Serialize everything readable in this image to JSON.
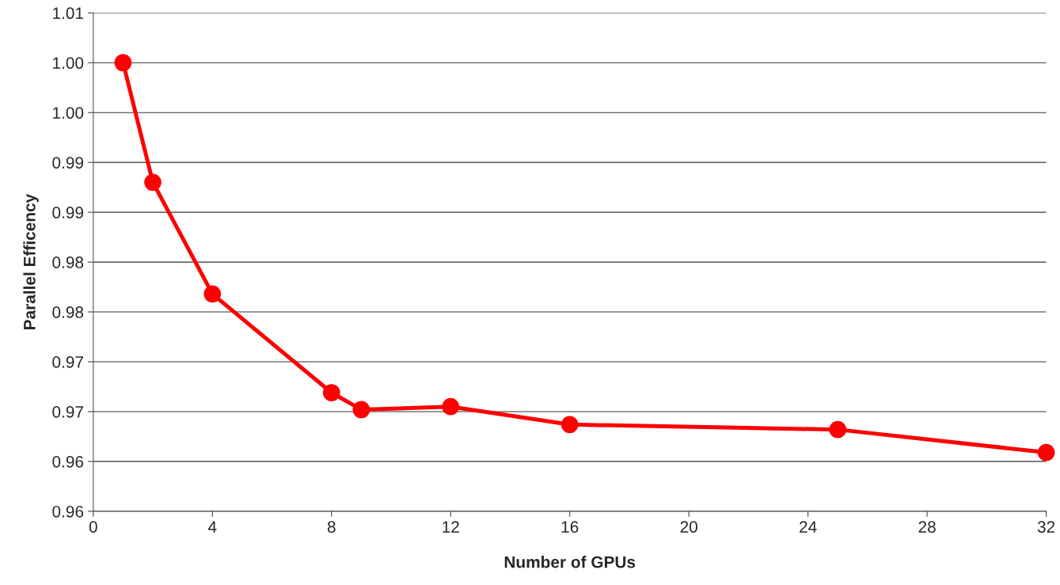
{
  "chart_data": {
    "type": "line",
    "xlabel": "Number of GPUs",
    "ylabel": "Parallel Efficency",
    "x": [
      1,
      2,
      4,
      8,
      9,
      12,
      16,
      25,
      32
    ],
    "series": [
      {
        "color": "#ff0000",
        "values": [
          1.0,
          0.988,
          0.9768,
          0.9669,
          0.9652,
          0.9655,
          0.9637,
          0.9632,
          0.9609
        ]
      }
    ],
    "xlim": [
      0,
      32
    ],
    "xticks": [
      0,
      4,
      8,
      12,
      16,
      20,
      24,
      28,
      32
    ],
    "ylim": [
      0.955,
      1.005
    ],
    "yticks": [
      {
        "value": 0.955,
        "label": "0.96"
      },
      {
        "value": 0.96,
        "label": "0.96"
      },
      {
        "value": 0.965,
        "label": "0.97"
      },
      {
        "value": 0.97,
        "label": "0.97"
      },
      {
        "value": 0.975,
        "label": "0.98"
      },
      {
        "value": 0.98,
        "label": "0.98"
      },
      {
        "value": 0.985,
        "label": "0.99"
      },
      {
        "value": 0.99,
        "label": "0.99"
      },
      {
        "value": 0.995,
        "label": "1.00"
      },
      {
        "value": 1.0,
        "label": "1.00"
      },
      {
        "value": 1.005,
        "label": "1.01"
      }
    ],
    "grid": "y",
    "marker": "circle",
    "line_style": "solid",
    "legend": false
  }
}
